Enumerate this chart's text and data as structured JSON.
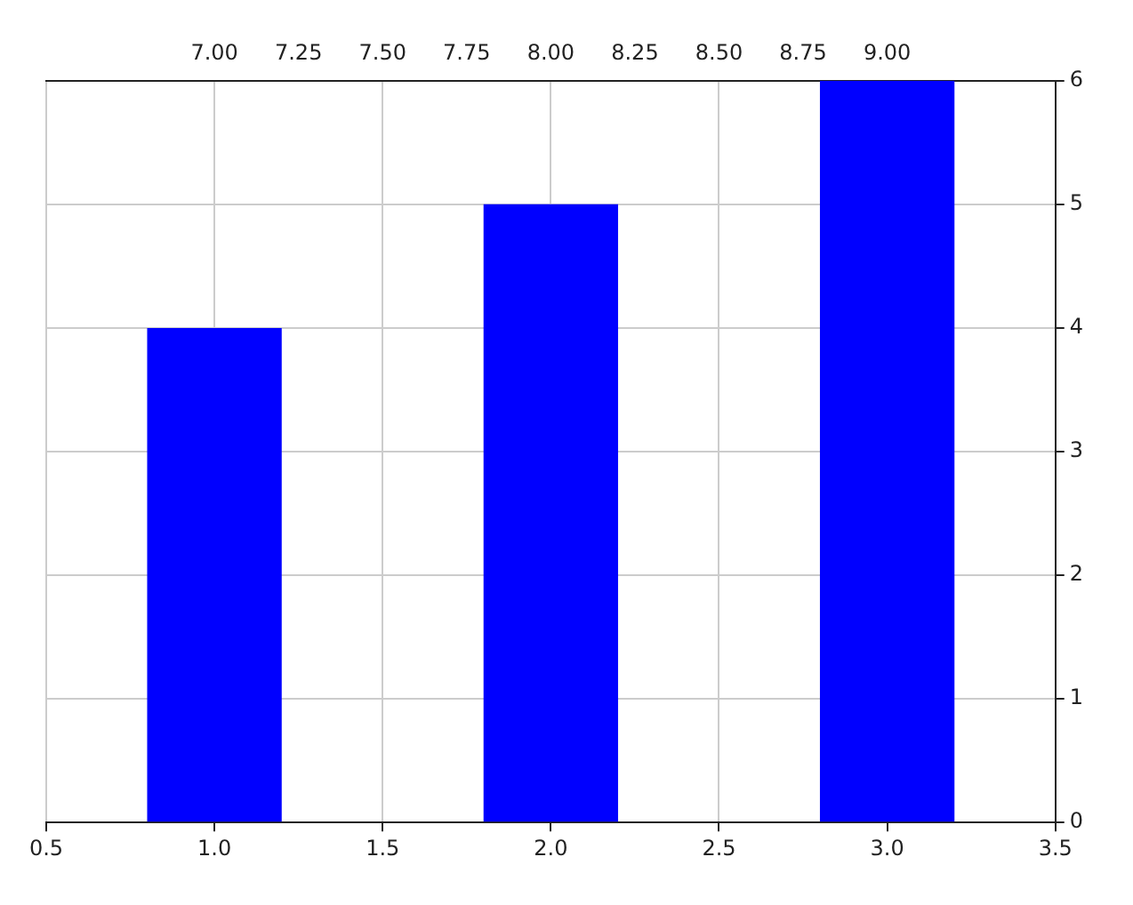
{
  "chart_data": {
    "type": "bar",
    "x": [
      1,
      2,
      3
    ],
    "values": [
      4,
      5,
      6
    ],
    "color": "#0000ff",
    "xlim": [
      0.5,
      3.5
    ],
    "xticks": [
      0.5,
      {
        "value": 1,
        "label": "1.0"
      },
      1.5,
      {
        "value": 2,
        "label": "2.0"
      },
      2.5,
      {
        "value": 3,
        "label": "3.0"
      },
      3.5
    ],
    "ylim": [
      0,
      6
    ],
    "yticks": [
      0,
      1,
      2,
      3,
      4,
      5,
      6
    ],
    "x2lim": [
      6.5,
      9.5
    ],
    "x2ticks": [
      {
        "value": 7,
        "label": "7.00"
      },
      {
        "value": 7.25,
        "label": "7.25"
      },
      {
        "value": 7.5,
        "label": "7.50"
      },
      {
        "value": 7.75,
        "label": "7.75"
      },
      {
        "value": 8,
        "label": "8.00"
      },
      {
        "value": 8.25,
        "label": "8.25"
      },
      {
        "value": 8.5,
        "label": "8.50"
      },
      {
        "value": 8.75,
        "label": "8.75"
      },
      {
        "value": 9,
        "label": "9.00"
      }
    ],
    "grid": true
  }
}
